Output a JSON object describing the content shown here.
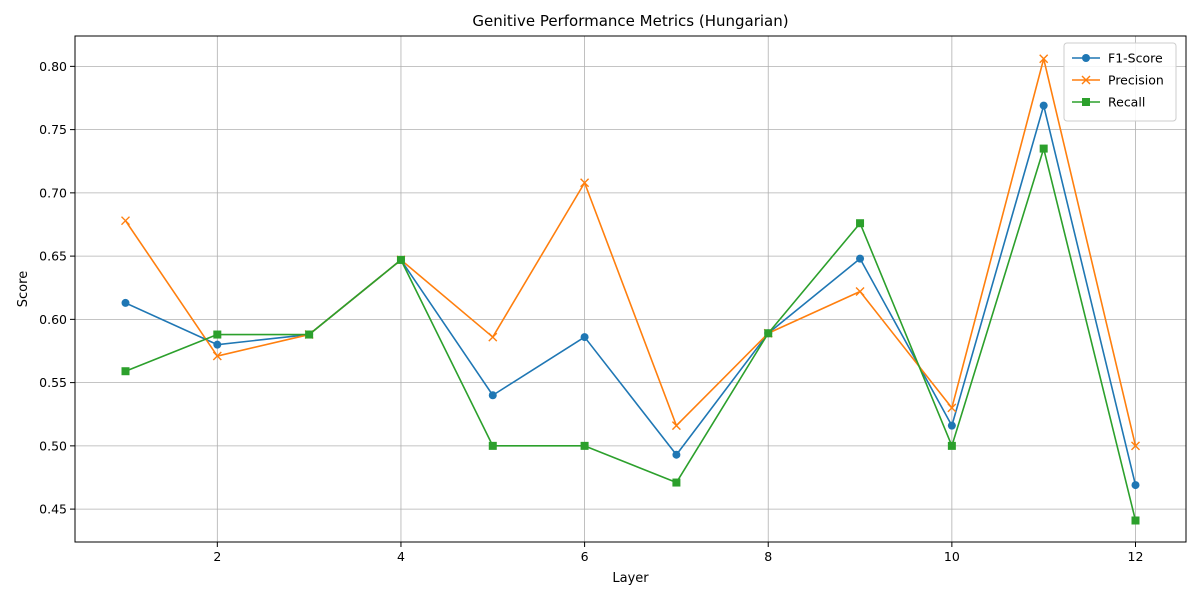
{
  "chart_data": {
    "type": "line",
    "title": "Genitive Performance Metrics (Hungarian)",
    "xlabel": "Layer",
    "ylabel": "Score",
    "x": [
      1,
      2,
      3,
      4,
      5,
      6,
      7,
      8,
      9,
      10,
      11,
      12
    ],
    "xlim": [
      0.45,
      12.55
    ],
    "ylim": [
      0.424,
      0.824
    ],
    "xticks": [
      2,
      4,
      6,
      8,
      10,
      12
    ],
    "yticks": [
      0.45,
      0.5,
      0.55,
      0.6,
      0.65,
      0.7,
      0.75,
      0.8
    ],
    "xtick_labels": [
      "2",
      "4",
      "6",
      "8",
      "10",
      "12"
    ],
    "ytick_labels": [
      "0.45",
      "0.50",
      "0.55",
      "0.60",
      "0.65",
      "0.70",
      "0.75",
      "0.80"
    ],
    "grid": true,
    "legend_position": "top-right",
    "series": [
      {
        "name": "F1-Score",
        "color": "#1f77b4",
        "marker": "circle",
        "values": [
          0.613,
          0.58,
          0.588,
          0.647,
          0.54,
          0.586,
          0.493,
          0.589,
          0.648,
          0.516,
          0.769,
          0.469
        ]
      },
      {
        "name": "Precision",
        "color": "#ff7f0e",
        "marker": "x",
        "values": [
          0.678,
          0.571,
          0.588,
          0.647,
          0.586,
          0.708,
          0.516,
          0.589,
          0.622,
          0.53,
          0.806,
          0.5
        ]
      },
      {
        "name": "Recall",
        "color": "#2ca02c",
        "marker": "square",
        "values": [
          0.559,
          0.588,
          0.588,
          0.647,
          0.5,
          0.5,
          0.471,
          0.589,
          0.676,
          0.5,
          0.735,
          0.441
        ]
      }
    ]
  }
}
